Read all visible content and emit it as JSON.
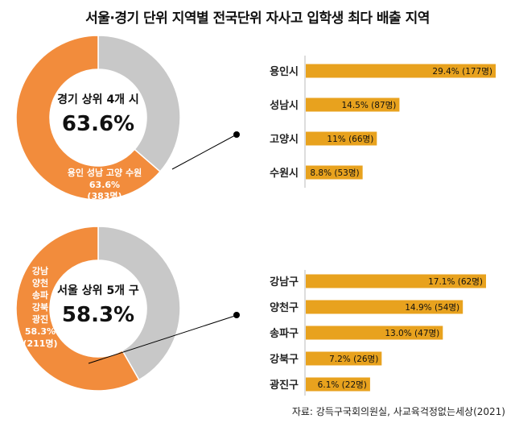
{
  "title": "서울·경기 단위 지역별 전국단위 자사고 입학생 최다 배출 지역",
  "source": "자료: 강득구국회의원실, 사교육걱정없는세상(2021)",
  "colors": {
    "orange": "#F28C3C",
    "gray": "#C8C8C8",
    "bar": "#E8A21E",
    "line": "#000000"
  },
  "chart_data": [
    {
      "type": "pie",
      "id": "gyeonggi-donut",
      "center_label": "경기 상위 4개 시",
      "center_value": "63.6%",
      "highlight_share": 63.6,
      "slice_labels": [
        "용인 성남 고양 수원",
        "63.6%",
        "(383명)"
      ]
    },
    {
      "type": "bar",
      "id": "gyeonggi-bars",
      "categories": [
        "용인시",
        "성남시",
        "고양시",
        "수원시"
      ],
      "values": [
        29.4,
        14.5,
        11,
        8.8
      ],
      "value_labels": [
        "29.4% (177명)",
        "14.5% (87명)",
        "11% (66명)",
        "8.8% (53명)"
      ]
    },
    {
      "type": "pie",
      "id": "seoul-donut",
      "center_label": "서울 상위 5개 구",
      "center_value": "58.3%",
      "highlight_share": 58.3,
      "slice_labels": [
        "강남",
        "양천",
        "송파",
        "강북",
        "광진",
        "58.3%",
        "(211명)"
      ]
    },
    {
      "type": "bar",
      "id": "seoul-bars",
      "categories": [
        "강남구",
        "양천구",
        "송파구",
        "강북구",
        "광진구"
      ],
      "values": [
        17.1,
        14.9,
        13.0,
        7.2,
        6.1
      ],
      "value_labels": [
        "17.1% (62명)",
        "14.9% (54명)",
        "13.0% (47명)",
        "7.2% (26명)",
        "6.1% (22명)"
      ]
    }
  ]
}
